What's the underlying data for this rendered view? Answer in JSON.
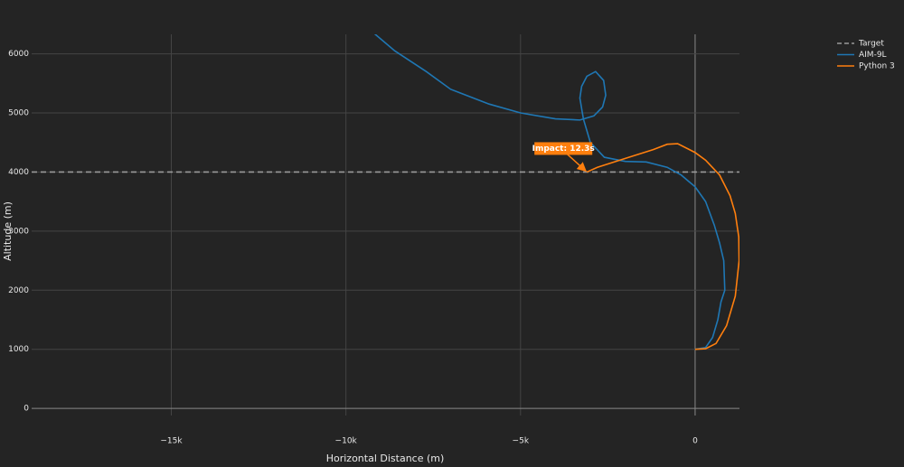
{
  "chart_data": {
    "type": "line",
    "x_label": "Horizontal Distance (m)",
    "y_label": "Altitude (m)",
    "xlim": [
      -19000,
      1270
    ],
    "ylim": [
      -120,
      6330
    ],
    "xticks": [
      {
        "value": -15000,
        "label": "−15k"
      },
      {
        "value": -10000,
        "label": "−10k"
      },
      {
        "value": -5000,
        "label": "−5k"
      },
      0
    ],
    "yticks": [
      0,
      1000,
      2000,
      3000,
      4000,
      5000,
      6000
    ],
    "grid": true,
    "legend": "top-right",
    "series": [
      {
        "name": "Target",
        "color": "#9a9a9a",
        "dash": "dash",
        "x": [
          -19000,
          1270
        ],
        "values": [
          4000,
          4000
        ]
      },
      {
        "name": "AIM-9L",
        "color": "#1f77b4",
        "dash": "solid",
        "x": [
          0,
          300,
          500,
          650,
          740,
          850,
          820,
          700,
          550,
          300,
          0,
          -400,
          -800,
          -1400,
          -2000,
          -2600,
          -3000,
          -3200,
          -3300,
          -3250,
          -3100,
          -2850,
          -2620,
          -2560,
          -2650,
          -2900,
          -3300,
          -4000,
          -5000,
          -5900,
          -7000,
          -7700,
          -8600,
          -9200
        ],
        "values": [
          1000,
          1030,
          1200,
          1500,
          1800,
          2000,
          2500,
          2800,
          3100,
          3500,
          3750,
          3950,
          4080,
          4170,
          4180,
          4250,
          4500,
          4900,
          5250,
          5450,
          5620,
          5700,
          5550,
          5300,
          5100,
          4950,
          4880,
          4900,
          5000,
          5150,
          5400,
          5700,
          6050,
          6350
        ]
      },
      {
        "name": "Python 3",
        "color": "#ff7f0e",
        "dash": "solid",
        "x": [
          0,
          300,
          600,
          900,
          1150,
          1260,
          1250,
          1150,
          1000,
          700,
          300,
          0,
          -500,
          -800,
          -1200,
          -2000,
          -2800,
          -3100
        ],
        "values": [
          1000,
          1010,
          1100,
          1400,
          1900,
          2500,
          2900,
          3300,
          3600,
          3950,
          4200,
          4330,
          4480,
          4470,
          4380,
          4230,
          4080,
          4000
        ]
      }
    ],
    "annotation": {
      "text": "Impact: 12.3s",
      "x": -3100,
      "y": 4000,
      "color": "#ff7f0e"
    }
  }
}
